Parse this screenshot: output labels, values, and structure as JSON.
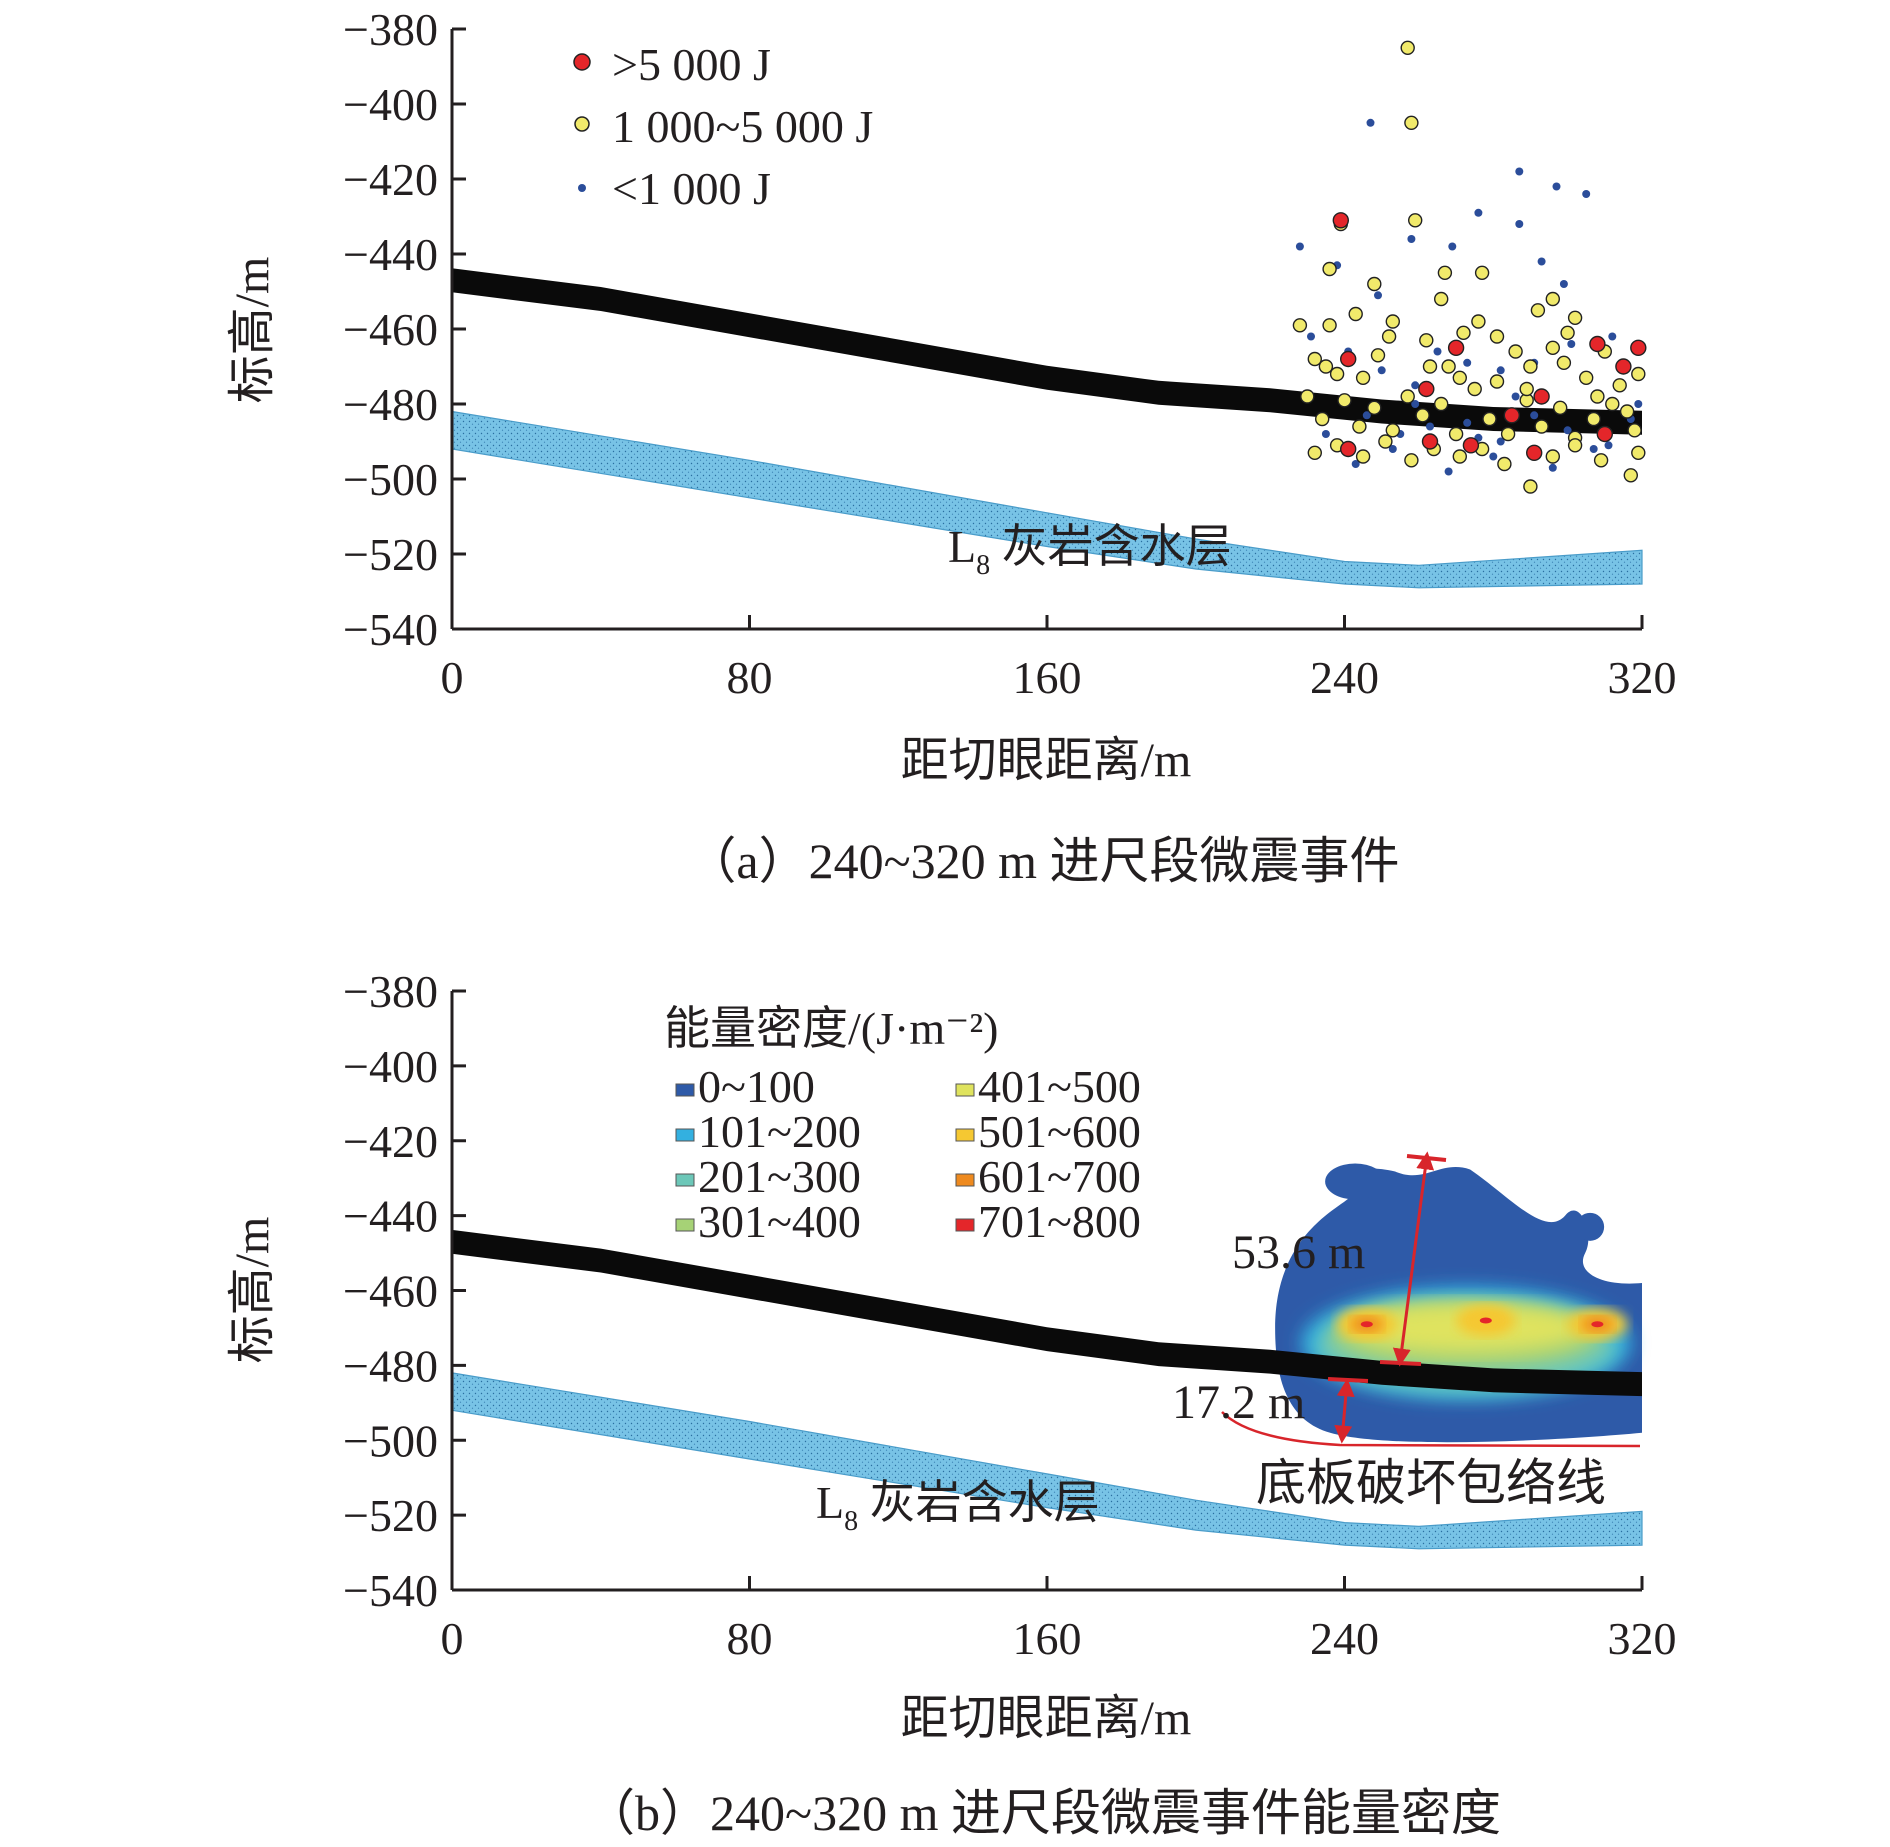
{
  "chart_data": [
    {
      "type": "scatter",
      "caption": "（a）240~320 m 进尺段微震事件",
      "xlabel": "距切眼距离/m",
      "ylabel": "标高/m",
      "xlim": [
        0,
        320
      ],
      "ylim": [
        -540,
        -380
      ],
      "xticks": [
        "0",
        "80",
        "160",
        "240",
        "320"
      ],
      "yticks": [
        "−380",
        "−400",
        "−420",
        "−440",
        "−460",
        "−480",
        "−500",
        "−520",
        "−540"
      ],
      "coal_seam": {
        "x": [
          0,
          40,
          80,
          120,
          160,
          190,
          220,
          250,
          280,
          320
        ],
        "y": [
          -447,
          -452,
          -459,
          -466,
          -473,
          -477,
          -479,
          -482,
          -484,
          -485
        ]
      },
      "aquifer": {
        "label_main": "L",
        "label_sub": "8",
        "label_rest": " 灰岩含水层",
        "x": [
          0,
          80,
          160,
          200,
          240,
          260,
          320
        ],
        "top": [
          -482,
          -495,
          -509,
          -516,
          -522,
          -523,
          -519
        ],
        "bottom": [
          -492,
          -505,
          -518,
          -524,
          -528,
          -529,
          -528
        ]
      },
      "legend": [
        {
          "label": ">5 000 J",
          "color": "#e4262a"
        },
        {
          "label": "1 000~5 000 J",
          "color": "#f1ea6b"
        },
        {
          "label": "<1 000 J",
          "color": "#2b4d9a"
        }
      ],
      "series": [
        {
          "name": ">5 000 J",
          "points": [
            [
              239,
              -431
            ],
            [
              241,
              -468
            ],
            [
              241,
              -492
            ],
            [
              262,
              -476
            ],
            [
              263,
              -490
            ],
            [
              270,
              -465
            ],
            [
              274,
              -491
            ],
            [
              285,
              -483
            ],
            [
              291,
              -493
            ],
            [
              293,
              -478
            ],
            [
              308,
              -464
            ],
            [
              310,
              -488
            ],
            [
              315,
              -470
            ],
            [
              319,
              -465
            ]
          ]
        },
        {
          "name": "1 000~5 000 J",
          "points": [
            [
              257,
              -385
            ],
            [
              258,
              -405
            ],
            [
              236,
              -444
            ],
            [
              239,
              -432
            ],
            [
              248,
              -448
            ],
            [
              259,
              -431
            ],
            [
              266,
              -452
            ],
            [
              267,
              -445
            ],
            [
              277,
              -445
            ],
            [
              296,
              -452
            ],
            [
              292,
              -455
            ],
            [
              302,
              -457
            ],
            [
              228,
              -459
            ],
            [
              232,
              -468
            ],
            [
              235,
              -470
            ],
            [
              238,
              -472
            ],
            [
              245,
              -473
            ],
            [
              249,
              -467
            ],
            [
              253,
              -458
            ],
            [
              262,
              -463
            ],
            [
              268,
              -470
            ],
            [
              272,
              -461
            ],
            [
              276,
              -458
            ],
            [
              281,
              -462
            ],
            [
              286,
              -466
            ],
            [
              290,
              -470
            ],
            [
              296,
              -465
            ],
            [
              300,
              -461
            ],
            [
              305,
              -473
            ],
            [
              310,
              -466
            ],
            [
              314,
              -475
            ],
            [
              319,
              -472
            ],
            [
              230,
              -478
            ],
            [
              234,
              -484
            ],
            [
              240,
              -479
            ],
            [
              244,
              -486
            ],
            [
              248,
              -481
            ],
            [
              253,
              -487
            ],
            [
              257,
              -478
            ],
            [
              261,
              -483
            ],
            [
              266,
              -480
            ],
            [
              270,
              -488
            ],
            [
              275,
              -476
            ],
            [
              279,
              -484
            ],
            [
              284,
              -488
            ],
            [
              289,
              -479
            ],
            [
              293,
              -486
            ],
            [
              298,
              -481
            ],
            [
              302,
              -489
            ],
            [
              307,
              -484
            ],
            [
              312,
              -480
            ],
            [
              318,
              -487
            ],
            [
              232,
              -493
            ],
            [
              238,
              -491
            ],
            [
              245,
              -494
            ],
            [
              251,
              -490
            ],
            [
              258,
              -495
            ],
            [
              264,
              -492
            ],
            [
              271,
              -494
            ],
            [
              277,
              -492
            ],
            [
              283,
              -496
            ],
            [
              290,
              -502
            ],
            [
              296,
              -494
            ],
            [
              302,
              -491
            ],
            [
              309,
              -495
            ],
            [
              317,
              -499
            ],
            [
              319,
              -493
            ],
            [
              236,
              -459
            ],
            [
              243,
              -456
            ],
            [
              252,
              -462
            ],
            [
              263,
              -470
            ],
            [
              271,
              -473
            ],
            [
              281,
              -474
            ],
            [
              289,
              -476
            ],
            [
              299,
              -469
            ],
            [
              308,
              -478
            ],
            [
              316,
              -482
            ]
          ]
        },
        {
          "name": "<1 000 J",
          "points": [
            [
              247,
              -405
            ],
            [
              287,
              -418
            ],
            [
              297,
              -422
            ],
            [
              305,
              -424
            ],
            [
              228,
              -438
            ],
            [
              238,
              -443
            ],
            [
              249,
              -451
            ],
            [
              258,
              -436
            ],
            [
              269,
              -438
            ],
            [
              276,
              -429
            ],
            [
              287,
              -432
            ],
            [
              293,
              -442
            ],
            [
              299,
              -448
            ],
            [
              231,
              -462
            ],
            [
              241,
              -466
            ],
            [
              250,
              -471
            ],
            [
              259,
              -475
            ],
            [
              265,
              -466
            ],
            [
              273,
              -469
            ],
            [
              282,
              -471
            ],
            [
              291,
              -469
            ],
            [
              301,
              -464
            ],
            [
              312,
              -462
            ],
            [
              319,
              -480
            ],
            [
              235,
              -488
            ],
            [
              246,
              -483
            ],
            [
              255,
              -488
            ],
            [
              263,
              -486
            ],
            [
              273,
              -485
            ],
            [
              282,
              -490
            ],
            [
              291,
              -483
            ],
            [
              300,
              -487
            ],
            [
              311,
              -491
            ],
            [
              317,
              -484
            ],
            [
              243,
              -496
            ],
            [
              253,
              -492
            ],
            [
              268,
              -498
            ],
            [
              280,
              -494
            ],
            [
              296,
              -497
            ],
            [
              307,
              -492
            ],
            [
              259,
              -480
            ],
            [
              286,
              -478
            ],
            [
              276,
              -489
            ]
          ]
        }
      ]
    },
    {
      "type": "heatmap",
      "caption": "（b）240~320 m 进尺段微震事件能量密度",
      "xlabel": "距切眼距离/m",
      "ylabel": "标高/m",
      "xlim": [
        0,
        320
      ],
      "ylim": [
        -540,
        -380
      ],
      "xticks": [
        "0",
        "80",
        "160",
        "240",
        "320"
      ],
      "yticks": [
        "−380",
        "−400",
        "−420",
        "−440",
        "−460",
        "−480",
        "−500",
        "−520",
        "−540"
      ],
      "coal_seam": {
        "x": [
          0,
          40,
          80,
          120,
          160,
          190,
          220,
          250,
          280,
          320
        ],
        "y": [
          -447,
          -452,
          -459,
          -466,
          -473,
          -477,
          -479,
          -482,
          -484,
          -485
        ]
      },
      "aquifer": {
        "label_main": "L",
        "label_sub": "8",
        "label_rest": " 灰岩含水层",
        "x": [
          0,
          80,
          160,
          200,
          240,
          260,
          320
        ],
        "top": [
          -482,
          -495,
          -509,
          -516,
          -522,
          -523,
          -519
        ],
        "bottom": [
          -492,
          -505,
          -518,
          -524,
          -528,
          -529,
          -528
        ]
      },
      "legend_title": "能量密度/(J·m⁻²)",
      "legend": [
        {
          "label": "0~100",
          "color": "#2e5aa8"
        },
        {
          "label": "101~200",
          "color": "#33b0e0"
        },
        {
          "label": "201~300",
          "color": "#6cc7b8"
        },
        {
          "label": "301~400",
          "color": "#a6d276"
        },
        {
          "label": "401~500",
          "color": "#dfe35e"
        },
        {
          "label": "501~600",
          "color": "#f5c832"
        },
        {
          "label": "601~700",
          "color": "#ee8a1f"
        },
        {
          "label": "701~800",
          "color": "#e4262a"
        }
      ],
      "annotations": [
        {
          "text": "53.6 m"
        },
        {
          "text": "17.2 m"
        },
        {
          "text": "底板破坏包络线"
        }
      ],
      "damage_zone": {
        "x_range": [
          220,
          320
        ],
        "y_top": -425,
        "y_bottom": -502
      },
      "hotspots": [
        {
          "x": 246,
          "y": -469,
          "level": 7
        },
        {
          "x": 278,
          "y": -468,
          "level": 6
        },
        {
          "x": 308,
          "y": -469,
          "level": 7
        }
      ]
    }
  ]
}
